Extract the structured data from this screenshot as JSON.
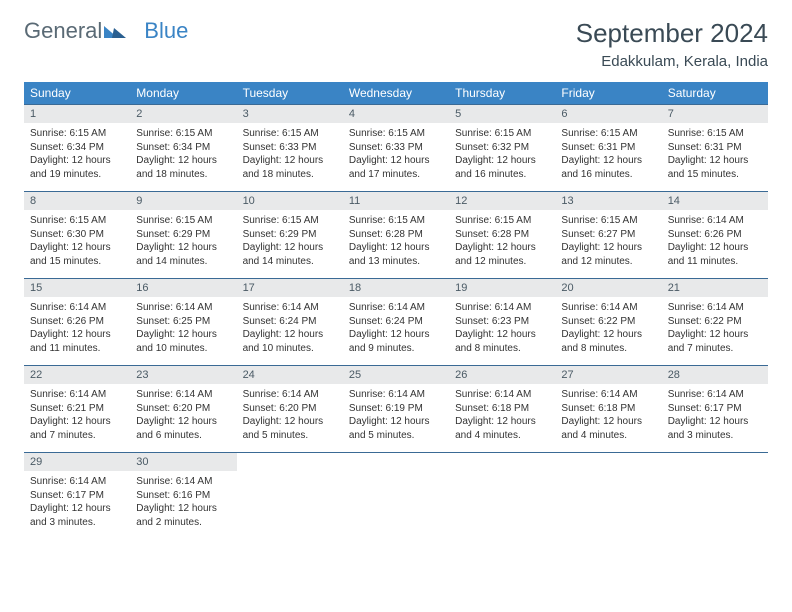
{
  "logo": {
    "part1": "General",
    "part2": "Blue"
  },
  "title": "September 2024",
  "location": "Edakkulam, Kerala, India",
  "colors": {
    "header_bg": "#3a84c5",
    "header_text": "#ffffff",
    "daynum_bg": "#e8e9ea",
    "daynum_text": "#4a5a65",
    "rule": "#3a6a95",
    "title_text": "#3a4a55",
    "body_text": "#333333"
  },
  "typography": {
    "title_fontsize": 26,
    "location_fontsize": 15,
    "dow_fontsize": 12,
    "daynum_fontsize": 11,
    "cell_fontsize": 10
  },
  "dow": [
    "Sunday",
    "Monday",
    "Tuesday",
    "Wednesday",
    "Thursday",
    "Friday",
    "Saturday"
  ],
  "weeks": [
    [
      {
        "n": "1",
        "sr": "Sunrise: 6:15 AM",
        "ss": "Sunset: 6:34 PM",
        "d1": "Daylight: 12 hours",
        "d2": "and 19 minutes."
      },
      {
        "n": "2",
        "sr": "Sunrise: 6:15 AM",
        "ss": "Sunset: 6:34 PM",
        "d1": "Daylight: 12 hours",
        "d2": "and 18 minutes."
      },
      {
        "n": "3",
        "sr": "Sunrise: 6:15 AM",
        "ss": "Sunset: 6:33 PM",
        "d1": "Daylight: 12 hours",
        "d2": "and 18 minutes."
      },
      {
        "n": "4",
        "sr": "Sunrise: 6:15 AM",
        "ss": "Sunset: 6:33 PM",
        "d1": "Daylight: 12 hours",
        "d2": "and 17 minutes."
      },
      {
        "n": "5",
        "sr": "Sunrise: 6:15 AM",
        "ss": "Sunset: 6:32 PM",
        "d1": "Daylight: 12 hours",
        "d2": "and 16 minutes."
      },
      {
        "n": "6",
        "sr": "Sunrise: 6:15 AM",
        "ss": "Sunset: 6:31 PM",
        "d1": "Daylight: 12 hours",
        "d2": "and 16 minutes."
      },
      {
        "n": "7",
        "sr": "Sunrise: 6:15 AM",
        "ss": "Sunset: 6:31 PM",
        "d1": "Daylight: 12 hours",
        "d2": "and 15 minutes."
      }
    ],
    [
      {
        "n": "8",
        "sr": "Sunrise: 6:15 AM",
        "ss": "Sunset: 6:30 PM",
        "d1": "Daylight: 12 hours",
        "d2": "and 15 minutes."
      },
      {
        "n": "9",
        "sr": "Sunrise: 6:15 AM",
        "ss": "Sunset: 6:29 PM",
        "d1": "Daylight: 12 hours",
        "d2": "and 14 minutes."
      },
      {
        "n": "10",
        "sr": "Sunrise: 6:15 AM",
        "ss": "Sunset: 6:29 PM",
        "d1": "Daylight: 12 hours",
        "d2": "and 14 minutes."
      },
      {
        "n": "11",
        "sr": "Sunrise: 6:15 AM",
        "ss": "Sunset: 6:28 PM",
        "d1": "Daylight: 12 hours",
        "d2": "and 13 minutes."
      },
      {
        "n": "12",
        "sr": "Sunrise: 6:15 AM",
        "ss": "Sunset: 6:28 PM",
        "d1": "Daylight: 12 hours",
        "d2": "and 12 minutes."
      },
      {
        "n": "13",
        "sr": "Sunrise: 6:15 AM",
        "ss": "Sunset: 6:27 PM",
        "d1": "Daylight: 12 hours",
        "d2": "and 12 minutes."
      },
      {
        "n": "14",
        "sr": "Sunrise: 6:14 AM",
        "ss": "Sunset: 6:26 PM",
        "d1": "Daylight: 12 hours",
        "d2": "and 11 minutes."
      }
    ],
    [
      {
        "n": "15",
        "sr": "Sunrise: 6:14 AM",
        "ss": "Sunset: 6:26 PM",
        "d1": "Daylight: 12 hours",
        "d2": "and 11 minutes."
      },
      {
        "n": "16",
        "sr": "Sunrise: 6:14 AM",
        "ss": "Sunset: 6:25 PM",
        "d1": "Daylight: 12 hours",
        "d2": "and 10 minutes."
      },
      {
        "n": "17",
        "sr": "Sunrise: 6:14 AM",
        "ss": "Sunset: 6:24 PM",
        "d1": "Daylight: 12 hours",
        "d2": "and 10 minutes."
      },
      {
        "n": "18",
        "sr": "Sunrise: 6:14 AM",
        "ss": "Sunset: 6:24 PM",
        "d1": "Daylight: 12 hours",
        "d2": "and 9 minutes."
      },
      {
        "n": "19",
        "sr": "Sunrise: 6:14 AM",
        "ss": "Sunset: 6:23 PM",
        "d1": "Daylight: 12 hours",
        "d2": "and 8 minutes."
      },
      {
        "n": "20",
        "sr": "Sunrise: 6:14 AM",
        "ss": "Sunset: 6:22 PM",
        "d1": "Daylight: 12 hours",
        "d2": "and 8 minutes."
      },
      {
        "n": "21",
        "sr": "Sunrise: 6:14 AM",
        "ss": "Sunset: 6:22 PM",
        "d1": "Daylight: 12 hours",
        "d2": "and 7 minutes."
      }
    ],
    [
      {
        "n": "22",
        "sr": "Sunrise: 6:14 AM",
        "ss": "Sunset: 6:21 PM",
        "d1": "Daylight: 12 hours",
        "d2": "and 7 minutes."
      },
      {
        "n": "23",
        "sr": "Sunrise: 6:14 AM",
        "ss": "Sunset: 6:20 PM",
        "d1": "Daylight: 12 hours",
        "d2": "and 6 minutes."
      },
      {
        "n": "24",
        "sr": "Sunrise: 6:14 AM",
        "ss": "Sunset: 6:20 PM",
        "d1": "Daylight: 12 hours",
        "d2": "and 5 minutes."
      },
      {
        "n": "25",
        "sr": "Sunrise: 6:14 AM",
        "ss": "Sunset: 6:19 PM",
        "d1": "Daylight: 12 hours",
        "d2": "and 5 minutes."
      },
      {
        "n": "26",
        "sr": "Sunrise: 6:14 AM",
        "ss": "Sunset: 6:18 PM",
        "d1": "Daylight: 12 hours",
        "d2": "and 4 minutes."
      },
      {
        "n": "27",
        "sr": "Sunrise: 6:14 AM",
        "ss": "Sunset: 6:18 PM",
        "d1": "Daylight: 12 hours",
        "d2": "and 4 minutes."
      },
      {
        "n": "28",
        "sr": "Sunrise: 6:14 AM",
        "ss": "Sunset: 6:17 PM",
        "d1": "Daylight: 12 hours",
        "d2": "and 3 minutes."
      }
    ],
    [
      {
        "n": "29",
        "sr": "Sunrise: 6:14 AM",
        "ss": "Sunset: 6:17 PM",
        "d1": "Daylight: 12 hours",
        "d2": "and 3 minutes."
      },
      {
        "n": "30",
        "sr": "Sunrise: 6:14 AM",
        "ss": "Sunset: 6:16 PM",
        "d1": "Daylight: 12 hours",
        "d2": "and 2 minutes."
      },
      null,
      null,
      null,
      null,
      null
    ]
  ]
}
